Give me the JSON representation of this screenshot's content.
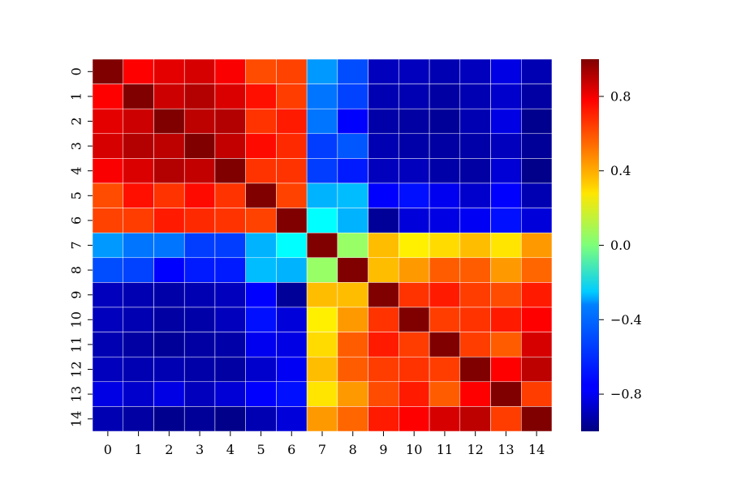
{
  "chart_data": {
    "type": "heatmap",
    "title": "",
    "xlabel": "",
    "ylabel": "",
    "x_categories": [
      "0",
      "1",
      "2",
      "3",
      "4",
      "5",
      "6",
      "7",
      "8",
      "9",
      "10",
      "11",
      "12",
      "13",
      "14"
    ],
    "y_categories": [
      "0",
      "1",
      "2",
      "3",
      "4",
      "5",
      "6",
      "7",
      "8",
      "9",
      "10",
      "11",
      "12",
      "13",
      "14"
    ],
    "values": [
      [
        1.0,
        0.75,
        0.8,
        0.83,
        0.76,
        0.6,
        0.62,
        -0.45,
        -0.6,
        -0.88,
        -0.88,
        -0.9,
        -0.88,
        -0.8,
        -0.9
      ],
      [
        0.75,
        1.0,
        0.85,
        0.9,
        0.82,
        0.72,
        0.63,
        -0.52,
        -0.62,
        -0.9,
        -0.9,
        -0.93,
        -0.9,
        -0.85,
        -0.93
      ],
      [
        0.8,
        0.85,
        1.0,
        0.88,
        0.9,
        0.65,
        0.7,
        -0.52,
        -0.75,
        -0.92,
        -0.93,
        -0.95,
        -0.9,
        -0.8,
        -0.97
      ],
      [
        0.83,
        0.9,
        0.88,
        1.0,
        0.87,
        0.73,
        0.67,
        -0.63,
        -0.58,
        -0.9,
        -0.92,
        -0.93,
        -0.92,
        -0.88,
        -0.95
      ],
      [
        0.76,
        0.82,
        0.9,
        0.87,
        1.0,
        0.65,
        0.65,
        -0.63,
        -0.7,
        -0.88,
        -0.88,
        -0.92,
        -0.93,
        -0.83,
        -0.98
      ],
      [
        0.6,
        0.72,
        0.65,
        0.73,
        0.65,
        1.0,
        0.62,
        -0.4,
        -0.38,
        -0.75,
        -0.72,
        -0.78,
        -0.85,
        -0.75,
        -0.9
      ],
      [
        0.62,
        0.63,
        0.7,
        0.67,
        0.65,
        0.62,
        1.0,
        -0.25,
        -0.4,
        -0.95,
        -0.82,
        -0.8,
        -0.77,
        -0.72,
        -0.82
      ],
      [
        -0.45,
        -0.52,
        -0.52,
        -0.63,
        -0.63,
        -0.4,
        -0.25,
        1.0,
        0.05,
        0.38,
        0.28,
        0.32,
        0.38,
        0.3,
        0.45
      ],
      [
        -0.6,
        -0.62,
        -0.75,
        -0.7,
        -0.7,
        -0.38,
        -0.4,
        0.05,
        1.0,
        0.38,
        0.45,
        0.57,
        0.57,
        0.45,
        0.55
      ],
      [
        -0.88,
        -0.9,
        -0.92,
        -0.9,
        -0.88,
        -0.75,
        -0.95,
        0.38,
        0.38,
        1.0,
        0.65,
        0.7,
        0.63,
        0.6,
        0.7
      ],
      [
        -0.88,
        -0.9,
        -0.93,
        -0.92,
        -0.88,
        -0.72,
        -0.82,
        0.28,
        0.45,
        0.65,
        1.0,
        0.63,
        0.65,
        0.7,
        0.75
      ],
      [
        -0.9,
        -0.93,
        -0.95,
        -0.93,
        -0.92,
        -0.78,
        -0.8,
        0.32,
        0.57,
        0.7,
        0.63,
        1.0,
        0.63,
        0.57,
        0.83
      ],
      [
        -0.88,
        -0.9,
        -0.9,
        -0.92,
        -0.93,
        -0.85,
        -0.77,
        0.38,
        0.57,
        0.63,
        0.65,
        0.63,
        1.0,
        0.75,
        0.88
      ],
      [
        -0.8,
        -0.85,
        -0.8,
        -0.88,
        -0.83,
        -0.75,
        -0.72,
        0.3,
        0.45,
        0.6,
        0.7,
        0.57,
        0.75,
        1.0,
        0.63
      ],
      [
        -0.9,
        -0.93,
        -0.97,
        -0.95,
        -0.98,
        -0.9,
        -0.82,
        0.45,
        0.55,
        0.7,
        0.75,
        0.83,
        0.88,
        0.63,
        1.0
      ]
    ],
    "colormap": "jet",
    "vmin": -1.0,
    "vmax": 1.0,
    "colorbar_ticks": [
      {
        "value": 0.8,
        "label": "0.8"
      },
      {
        "value": 0.4,
        "label": "0.4"
      },
      {
        "value": 0.0,
        "label": "0.0"
      },
      {
        "value": -0.4,
        "label": "−0.4"
      },
      {
        "value": -0.8,
        "label": "−0.8"
      }
    ],
    "grid_lines": true,
    "grid_line_color": "#ffffff"
  }
}
